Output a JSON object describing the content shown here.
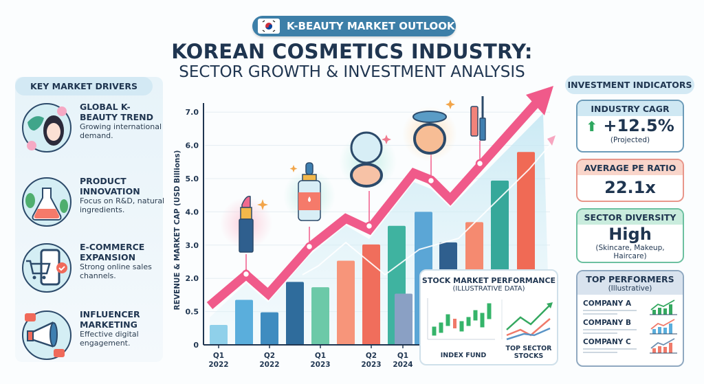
{
  "header": {
    "badge": "K-BEAUTY MARKET OUTLOOK",
    "badge_icon": "korean-flag-icon",
    "title": "KOREAN COSMETICS INDUSTRY:",
    "subtitle": "SECTOR GROWTH & INVESTMENT ANALYSIS"
  },
  "drivers": {
    "title": "KEY MARKET DRIVERS",
    "items": [
      {
        "title": "GLOBAL K-BEAUTY TREND",
        "desc": "Growing international demand.",
        "icon": "globe-woman-icon"
      },
      {
        "title": "PRODUCT INNOVATION",
        "desc": "Focus on R&D, natural ingredients.",
        "icon": "flask-icon"
      },
      {
        "title": "E-COMMERCE EXPANSION",
        "desc": "Strong online sales channels.",
        "icon": "shopping-cart-phone-icon"
      },
      {
        "title": "INFLUENCER MARKETING",
        "desc": "Effective digital engagement.",
        "icon": "megaphone-icon"
      }
    ]
  },
  "chart_data": {
    "type": "bar",
    "ylabel": "REVENUE & MARKET CAP (USD Billions)",
    "yticks": [
      "0",
      "0.5",
      "2.0",
      "3.0",
      "4.0",
      "5.0",
      "6.0",
      "7.0"
    ],
    "ytick_values": [
      0,
      0.5,
      2.0,
      3.0,
      4.0,
      5.0,
      6.0,
      7.0
    ],
    "ylim": [
      0,
      7.0
    ],
    "xtick_labels": [
      {
        "q": "Q1",
        "y": "2022"
      },
      {
        "q": "Q2",
        "y": "2022"
      },
      {
        "q": "Q1",
        "y": "2023"
      },
      {
        "q": "Q2",
        "y": "2023"
      },
      {
        "q": "Q1",
        "y": "2024"
      }
    ],
    "values": [
      0.3,
      1.03,
      0.49,
      1.84,
      1.6,
      2.53,
      3.02,
      3.58,
      1.31,
      4.0,
      3.08,
      3.69,
      4.94,
      5.8
    ],
    "colors": [
      "#8fd0ea",
      "#5aaedc",
      "#3f8cc0",
      "#2f6c9c",
      "#6cc9a8",
      "#f7957a",
      "#f06e5c",
      "#3fb3a0",
      "#8aa0c4",
      "#5ba6d6",
      "#2f5f8e",
      "#f58a70",
      "#36a89a",
      "#f06a55"
    ],
    "trend_line_color": "#f05a8a",
    "grid": true,
    "product_icons": [
      "lipstick-icon",
      "serum-bottle-icon",
      "compact-mirror-icon",
      "cushion-compact-icon",
      "mascara-icon"
    ]
  },
  "stock": {
    "title": "STOCK MARKET PERFORMANCE",
    "subtitle": "(ILLUSTRATIVE DATA)",
    "left_label": "INDEX FUND",
    "right_label": "TOP SECTOR STOCKS"
  },
  "indicators": {
    "title": "INVESTMENT INDICATORS",
    "cagr": {
      "label": "INDUSTRY CAGR",
      "value": "+12.5%",
      "note": "(Projected)",
      "color": "#cfe8f3"
    },
    "pe": {
      "label": "AVERAGE PE RATIO",
      "value": "22.1x",
      "color": "#f9d5ca"
    },
    "diversity": {
      "label": "SECTOR DIVERSITY",
      "value": "High",
      "note": "(Skincare, Makeup, Haircare)",
      "color": "#c9ecdd"
    },
    "top": {
      "label": "TOP PERFORMERS",
      "note": "(Illustrative)",
      "color": "#d9e3ee",
      "companies": [
        "COMPANY A",
        "COMPANY B",
        "COMPANY C"
      ]
    }
  }
}
